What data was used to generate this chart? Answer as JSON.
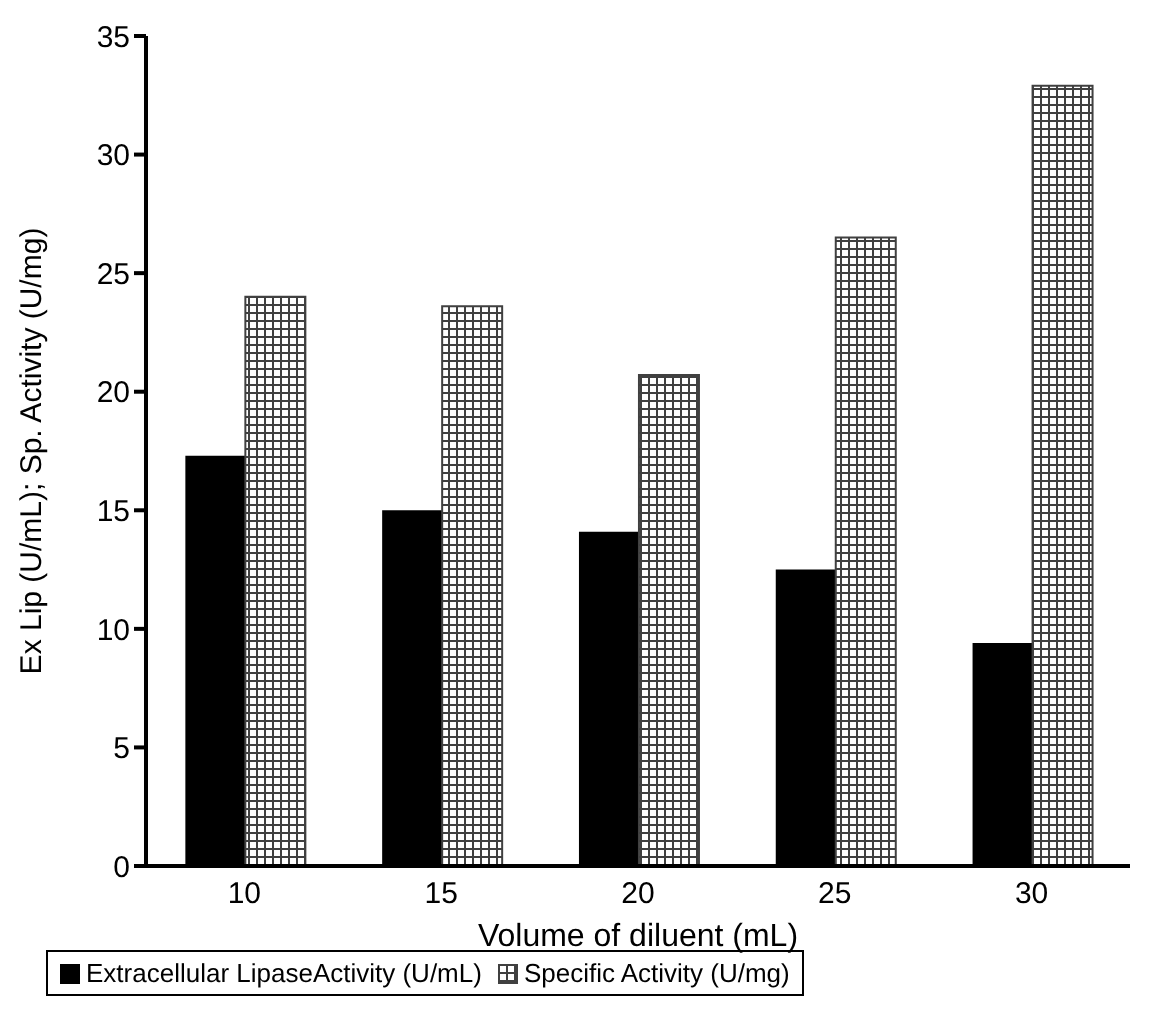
{
  "chart_data": {
    "type": "bar",
    "xlabel": "Volume of diluent (mL)",
    "ylabel": "Ex Lip (U/mL); Sp. Activity (U/mg)",
    "categories": [
      "10",
      "15",
      "20",
      "25",
      "30"
    ],
    "series": [
      {
        "name": "Extracellular LipaseActivity (U/mL)",
        "color": "#000000",
        "values": [
          17.3,
          15.0,
          14.1,
          12.5,
          9.4
        ]
      },
      {
        "name": "Specific Activity (U/mg)",
        "color": "#404040",
        "values": [
          24.0,
          23.6,
          20.7,
          26.5,
          32.9
        ]
      }
    ],
    "ylim": [
      0,
      35
    ],
    "yticks": [
      0,
      5,
      10,
      15,
      20,
      25,
      30,
      35
    ],
    "grid": false,
    "legend": "bottom"
  }
}
